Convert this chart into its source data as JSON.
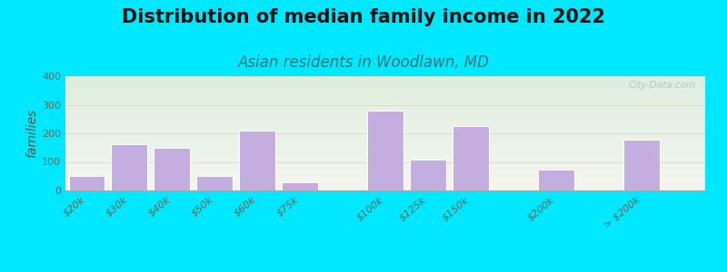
{
  "title": "Distribution of median family income in 2022",
  "subtitle": "Asian residents in Woodlawn, MD",
  "ylabel": "families",
  "categories": [
    "$20k",
    "$30k",
    "$40k",
    "$50k",
    "$60k",
    "$75k",
    "$100k",
    "$125k",
    "$150k",
    "$200k",
    "> $200k"
  ],
  "values": [
    50,
    162,
    150,
    50,
    210,
    28,
    278,
    108,
    225,
    72,
    178
  ],
  "bar_color": "#c4aee0",
  "bar_edgecolor": "#ffffff",
  "background_outer": "#00e8ff",
  "plot_bg_left_top": "#ddeedd",
  "plot_bg_right_bottom": "#f0eeee",
  "grid_color": "#ddddcc",
  "title_fontsize": 15,
  "subtitle_fontsize": 12,
  "ylabel_fontsize": 10,
  "tick_fontsize": 8,
  "ylim": [
    0,
    400
  ],
  "yticks": [
    0,
    100,
    200,
    300,
    400
  ],
  "watermark_text": "City-Data.com",
  "watermark_color": "#bbbbbb",
  "bar_positions": [
    0,
    1,
    2,
    3,
    4,
    5,
    7,
    8,
    9,
    11,
    13
  ]
}
